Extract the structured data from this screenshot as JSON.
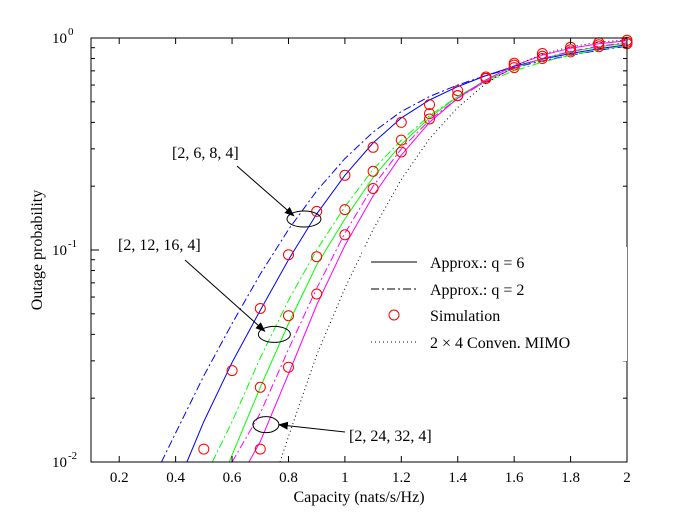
{
  "chart_data": {
    "type": "line",
    "title": "",
    "xlabel": "Capacity (nats/s/Hz)",
    "ylabel": "Outage probability",
    "xlim": [
      0.1,
      2.0
    ],
    "ylim": [
      0.01,
      1
    ],
    "yscale": "log",
    "grid": false,
    "legend_position": "right",
    "x_ticks": [
      0.2,
      0.4,
      0.6,
      0.8,
      1.0,
      1.2,
      1.4,
      1.6,
      1.8,
      2.0
    ],
    "x_tick_labels": [
      "0.2",
      "0.4",
      "0.6",
      "0.8",
      "1",
      "1.2",
      "1.4",
      "1.6",
      "1.8",
      "2"
    ],
    "y_ticks": [
      0.01,
      0.1,
      1
    ],
    "y_tick_labels": [
      {
        "base": "10",
        "exp": "-2"
      },
      {
        "base": "10",
        "exp": "-1"
      },
      {
        "base": "10",
        "exp": "0"
      }
    ],
    "legend": [
      {
        "label": "Approx.: q = 6",
        "style": "solid"
      },
      {
        "label": "Approx.: q = 2",
        "style": "dashdot"
      },
      {
        "label": "Simulation",
        "style": "circle-marker"
      },
      {
        "label": "2 × 4 Conven. MIMO",
        "style": "dotted"
      }
    ],
    "annotations": [
      {
        "text": "[2, 6, 8, 4]",
        "ellipse_center": [
          0.855,
          0.14
        ],
        "label_anchor": [
          0.7,
          0.6
        ]
      },
      {
        "text": "[2, 12, 16, 4]",
        "ellipse_center": [
          0.75,
          0.04
        ],
        "label_anchor": [
          0.62,
          0.11
        ]
      },
      {
        "text": "[2, 24, 32, 4]",
        "ellipse_center": [
          0.72,
          0.015
        ],
        "label_anchor": [
          1.05,
          0.0127
        ]
      }
    ],
    "series": [
      {
        "config": "[2, 6, 8, 4]",
        "method": "Approx.: q = 6",
        "color": "#0000ff",
        "style": "solid",
        "x": [
          0.44,
          0.5,
          0.6,
          0.7,
          0.8,
          0.9,
          1.0,
          1.1,
          1.2,
          1.3,
          1.4,
          1.5,
          1.6,
          1.7,
          1.8,
          1.9,
          2.0
        ],
        "y": [
          0.01,
          0.0155,
          0.0295,
          0.052,
          0.09,
          0.148,
          0.225,
          0.32,
          0.42,
          0.51,
          0.59,
          0.665,
          0.735,
          0.795,
          0.845,
          0.89,
          0.93
        ]
      },
      {
        "config": "[2, 6, 8, 4]",
        "method": "Approx.: q = 2",
        "color": "#0000ff",
        "style": "dashdot",
        "x": [
          0.35,
          0.4,
          0.5,
          0.6,
          0.7,
          0.8,
          0.9,
          1.0,
          1.1,
          1.2,
          1.3,
          1.4,
          1.5,
          1.6,
          1.7,
          1.8,
          1.9,
          2.0
        ],
        "y": [
          0.01,
          0.0137,
          0.0255,
          0.045,
          0.077,
          0.125,
          0.19,
          0.27,
          0.36,
          0.45,
          0.53,
          0.6,
          0.665,
          0.725,
          0.78,
          0.83,
          0.875,
          0.915
        ]
      },
      {
        "config": "[2, 6, 8, 4]",
        "method": "Simulation",
        "color": "#ff0000",
        "style": "circle",
        "x": [
          0.5,
          0.6,
          0.7,
          0.8,
          0.9,
          1.0,
          1.1,
          1.2,
          1.3,
          1.4,
          1.5,
          1.6,
          1.7,
          1.8,
          1.9,
          2.0
        ],
        "y": [
          0.0115,
          0.027,
          0.053,
          0.095,
          0.152,
          0.225,
          0.305,
          0.4,
          0.485,
          0.565,
          0.645,
          0.725,
          0.8,
          0.86,
          0.91,
          0.94
        ]
      },
      {
        "config": "[2, 12, 16, 4]",
        "method": "Approx.: q = 6",
        "color": "#00ff00",
        "style": "solid",
        "x": [
          0.59,
          0.6,
          0.7,
          0.8,
          0.9,
          1.0,
          1.1,
          1.2,
          1.3,
          1.4,
          1.5,
          1.6,
          1.7,
          1.8,
          1.9,
          2.0
        ],
        "y": [
          0.01,
          0.0108,
          0.0225,
          0.045,
          0.085,
          0.14,
          0.22,
          0.315,
          0.42,
          0.53,
          0.63,
          0.72,
          0.8,
          0.86,
          0.91,
          0.945
        ]
      },
      {
        "config": "[2, 12, 16, 4]",
        "method": "Approx.: q = 2",
        "color": "#00ff00",
        "style": "dashdot",
        "x": [
          0.53,
          0.6,
          0.7,
          0.8,
          0.9,
          1.0,
          1.1,
          1.2,
          1.3,
          1.4,
          1.5,
          1.6,
          1.7,
          1.8,
          1.9,
          2.0
        ],
        "y": [
          0.01,
          0.0155,
          0.031,
          0.058,
          0.1,
          0.16,
          0.24,
          0.33,
          0.43,
          0.53,
          0.62,
          0.7,
          0.77,
          0.83,
          0.88,
          0.92
        ]
      },
      {
        "config": "[2, 12, 16, 4]",
        "method": "Simulation",
        "color": "#ff0000",
        "style": "circle",
        "x": [
          0.7,
          0.8,
          0.9,
          1.0,
          1.1,
          1.2,
          1.3,
          1.4,
          1.5,
          1.6,
          1.7,
          1.8,
          1.9,
          2.0
        ],
        "y": [
          0.0225,
          0.049,
          0.093,
          0.155,
          0.235,
          0.33,
          0.44,
          0.535,
          0.645,
          0.745,
          0.82,
          0.88,
          0.93,
          0.955
        ]
      },
      {
        "config": "[2, 24, 32, 4]",
        "method": "Approx.: q = 6",
        "color": "#ff00ff",
        "style": "solid",
        "x": [
          0.66,
          0.7,
          0.8,
          0.9,
          1.0,
          1.1,
          1.2,
          1.3,
          1.4,
          1.5,
          1.6,
          1.7,
          1.8,
          1.9,
          2.0
        ],
        "y": [
          0.01,
          0.0125,
          0.026,
          0.055,
          0.105,
          0.18,
          0.28,
          0.4,
          0.52,
          0.635,
          0.74,
          0.83,
          0.895,
          0.94,
          0.97
        ]
      },
      {
        "config": "[2, 24, 32, 4]",
        "method": "Approx.: q = 2",
        "color": "#ff00ff",
        "style": "dashdot",
        "x": [
          0.6,
          0.7,
          0.8,
          0.9,
          1.0,
          1.1,
          1.2,
          1.3,
          1.4,
          1.5,
          1.6,
          1.7,
          1.8,
          1.9,
          2.0
        ],
        "y": [
          0.01,
          0.017,
          0.034,
          0.066,
          0.12,
          0.2,
          0.3,
          0.41,
          0.52,
          0.625,
          0.72,
          0.8,
          0.865,
          0.915,
          0.95
        ]
      },
      {
        "config": "[2, 24, 32, 4]",
        "method": "Simulation",
        "color": "#ff0000",
        "style": "circle",
        "x": [
          0.7,
          0.8,
          0.9,
          1.0,
          1.1,
          1.2,
          1.3,
          1.4,
          1.5,
          1.6,
          1.7,
          1.8,
          1.9,
          2.0
        ],
        "y": [
          0.0115,
          0.028,
          0.062,
          0.118,
          0.195,
          0.29,
          0.415,
          0.535,
          0.655,
          0.76,
          0.845,
          0.905,
          0.95,
          0.975
        ]
      },
      {
        "config": "2 × 4 Conven. MIMO",
        "method": "2 × 4 Conven. MIMO",
        "color": "#000000",
        "style": "dotted",
        "x": [
          0.77,
          0.8,
          0.9,
          1.0,
          1.1,
          1.2,
          1.3,
          1.4,
          1.5,
          1.6,
          1.7,
          1.8,
          1.9,
          2.0
        ],
        "y": [
          0.01,
          0.0132,
          0.032,
          0.066,
          0.125,
          0.215,
          0.335,
          0.47,
          0.61,
          0.735,
          0.84,
          0.91,
          0.955,
          0.98
        ]
      }
    ]
  }
}
